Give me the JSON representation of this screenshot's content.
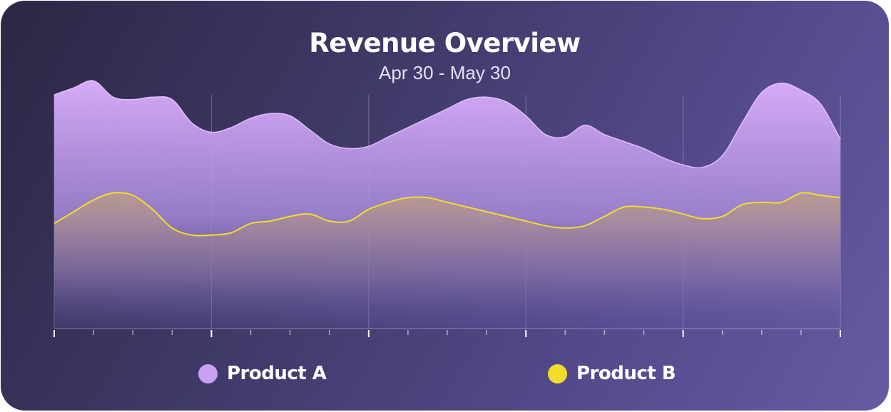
{
  "chart_data": {
    "type": "area",
    "title": "Revenue Overview",
    "subtitle": "Apr 30 - May 30",
    "x": [
      0,
      0.5,
      1,
      1.5,
      2,
      2.5,
      3,
      3.5,
      4,
      4.5,
      5,
      5.5,
      6,
      6.5,
      7,
      7.5,
      8,
      8.5,
      9,
      9.5,
      10,
      10.5,
      11,
      11.5,
      12,
      12.5,
      13,
      13.5,
      14,
      14.5,
      15,
      15.5,
      16,
      16.5,
      17,
      17.5,
      18,
      18.5,
      19,
      19.5,
      20
    ],
    "xlim": [
      0,
      20
    ],
    "ylim": [
      0,
      100
    ],
    "grid": true,
    "legend_position": "bottom",
    "series": [
      {
        "name": "Product A",
        "color": "#c9a0f2",
        "values": [
          100,
          103,
          106,
          99,
          98,
          99,
          98,
          88,
          84,
          86,
          90,
          92,
          91,
          85,
          79,
          77,
          78,
          82,
          86,
          90,
          94,
          98,
          99,
          97,
          91,
          83,
          82,
          87,
          83,
          80,
          77,
          73,
          70,
          69,
          74,
          88,
          101,
          105,
          102,
          96,
          81
        ]
      },
      {
        "name": "Product B",
        "color": "#f2dd2d",
        "values": [
          45,
          50,
          55,
          58,
          57,
          51,
          43,
          40,
          40,
          41,
          45,
          46,
          48,
          49,
          46,
          46,
          51,
          54,
          56,
          56,
          54,
          52,
          50,
          48,
          46,
          44,
          43,
          44,
          48,
          52,
          52,
          51,
          49,
          47,
          48,
          53,
          54,
          54,
          58,
          57,
          56
        ]
      }
    ]
  }
}
